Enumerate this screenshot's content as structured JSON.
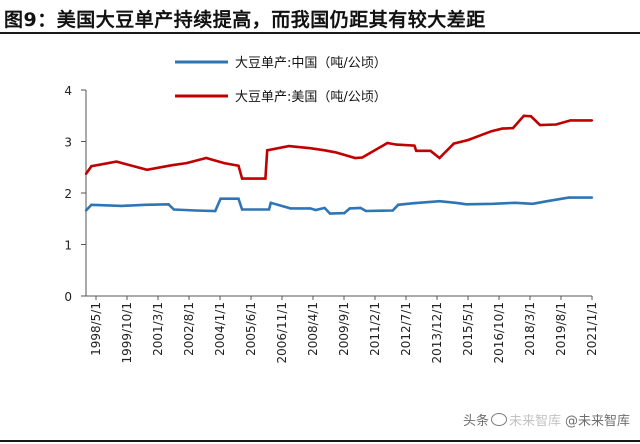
{
  "title": "图9：美国大豆单产持续提高，而我国仍距其有较大差距",
  "watermark": {
    "platform": "头条",
    "ghost_text": "未来智库",
    "account": "@未来智库"
  },
  "colors": {
    "china": "#2e75b6",
    "usa": "#c00000",
    "axis": "#555555"
  },
  "chart_data": {
    "type": "line",
    "title": "图9：美国大豆单产持续提高，而我国仍距其有较大差距",
    "xlabel": "",
    "ylabel": "",
    "ylim": [
      0,
      4
    ],
    "y_ticks": [
      0,
      1,
      2,
      3,
      4
    ],
    "grid": false,
    "legend_position": "top-center",
    "x_range": [
      "1998-05",
      "2021-11"
    ],
    "x_tick_labels": [
      "1998/5/1",
      "1999/10/1",
      "2001/3/1",
      "2002/8/1",
      "2004/1/1",
      "2005/6/1",
      "2006/11/1",
      "2008/4/1",
      "2009/9/1",
      "2011/2/1",
      "2012/7/1",
      "2013/12/1",
      "2015/5/1",
      "2016/10/1",
      "2018/3/1",
      "2019/8/1",
      "2021/1/1"
    ],
    "series": [
      {
        "name": "大豆单产:中国（吨/公顷）",
        "color": "#2e75b6",
        "x": [
          "1998-05",
          "1998-08",
          "2000-01",
          "2001-02",
          "2002-03",
          "2002-06",
          "2003-06",
          "2004-05",
          "2004-08",
          "2005-06",
          "2005-08",
          "2006-11",
          "2006-12",
          "2007-11",
          "2008-10",
          "2009-01",
          "2009-06",
          "2009-09",
          "2010-05",
          "2010-08",
          "2011-02",
          "2011-05",
          "2012-08",
          "2012-11",
          "2013-07",
          "2014-10",
          "2015-07",
          "2016-01",
          "2017-04",
          "2018-04",
          "2019-02",
          "2019-10",
          "2020-10",
          "2021-11"
        ],
        "values": [
          1.66,
          1.77,
          1.75,
          1.77,
          1.78,
          1.68,
          1.66,
          1.65,
          1.89,
          1.89,
          1.68,
          1.68,
          1.81,
          1.7,
          1.7,
          1.67,
          1.71,
          1.6,
          1.61,
          1.7,
          1.71,
          1.65,
          1.66,
          1.77,
          1.8,
          1.84,
          1.81,
          1.78,
          1.79,
          1.81,
          1.79,
          1.84,
          1.91,
          1.91
        ]
      },
      {
        "name": "大豆单产:美国（吨/公顷）",
        "color": "#c00000",
        "x": [
          "1998-05",
          "1998-08",
          "1999-10",
          "2001-03",
          "2002-05",
          "2003-01",
          "2003-12",
          "2004-10",
          "2005-06",
          "2005-08",
          "2006-09",
          "2006-10",
          "2007-10",
          "2008-10",
          "2009-06",
          "2009-12",
          "2010-11",
          "2011-03",
          "2012-05",
          "2012-10",
          "2013-08",
          "2013-09",
          "2014-05",
          "2014-10",
          "2015-06",
          "2016-02",
          "2017-03",
          "2017-09",
          "2018-03",
          "2018-09",
          "2019-01",
          "2019-06",
          "2020-03",
          "2020-11",
          "2021-11"
        ],
        "values": [
          2.37,
          2.52,
          2.61,
          2.45,
          2.54,
          2.58,
          2.68,
          2.58,
          2.53,
          2.28,
          2.28,
          2.83,
          2.91,
          2.87,
          2.83,
          2.79,
          2.68,
          2.69,
          2.97,
          2.94,
          2.92,
          2.82,
          2.82,
          2.68,
          2.96,
          3.03,
          3.2,
          3.25,
          3.26,
          3.5,
          3.49,
          3.32,
          3.33,
          3.41,
          3.41
        ]
      }
    ]
  }
}
